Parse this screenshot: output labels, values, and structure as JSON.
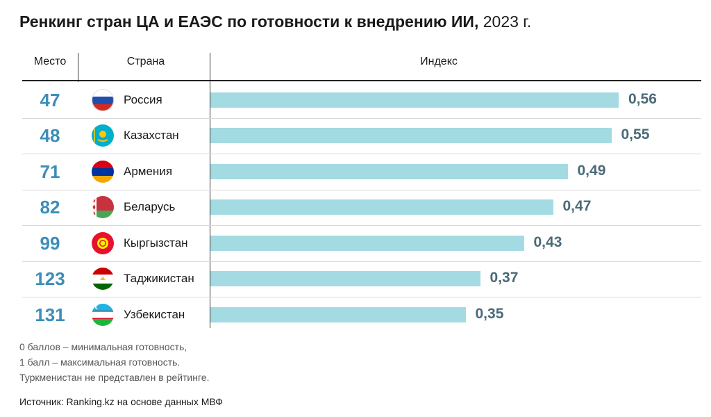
{
  "title": {
    "main": "Ренкинг стран ЦА и ЕАЭС по готовности к внедрению ИИ,",
    "year": "2023 г."
  },
  "headers": {
    "rank": "Место",
    "country": "Страна",
    "index": "Индекс"
  },
  "chart_data": {
    "type": "bar",
    "orientation": "horizontal",
    "title": "Ренкинг стран ЦА и ЕАЭС по готовности к внедрению ИИ, 2023 г.",
    "xlim": [
      0,
      0.6
    ],
    "bar_color": "#a4dbe3",
    "rows": [
      {
        "rank": "47",
        "country": "Россия",
        "value": 0.56,
        "value_label": "0,56",
        "flag": "russia-flag-icon"
      },
      {
        "rank": "48",
        "country": "Казахстан",
        "value": 0.55,
        "value_label": "0,55",
        "flag": "kazakhstan-flag-icon"
      },
      {
        "rank": "71",
        "country": "Армения",
        "value": 0.49,
        "value_label": "0,49",
        "flag": "armenia-flag-icon"
      },
      {
        "rank": "82",
        "country": "Беларусь",
        "value": 0.47,
        "value_label": "0,47",
        "flag": "belarus-flag-icon"
      },
      {
        "rank": "99",
        "country": "Кыргызстан",
        "value": 0.43,
        "value_label": "0,43",
        "flag": "kyrgyzstan-flag-icon"
      },
      {
        "rank": "123",
        "country": "Таджикистан",
        "value": 0.37,
        "value_label": "0,37",
        "flag": "tajikistan-flag-icon"
      },
      {
        "rank": "131",
        "country": "Узбекистан",
        "value": 0.35,
        "value_label": "0,35",
        "flag": "uzbekistan-flag-icon"
      }
    ]
  },
  "notes": [
    "0 баллов – минимальная готовность,",
    "1 балл – максимальная готовность.",
    "Туркменистан не представлен в рейтинге."
  ],
  "source": "Источник: Ranking.kz на основе данных МВФ"
}
